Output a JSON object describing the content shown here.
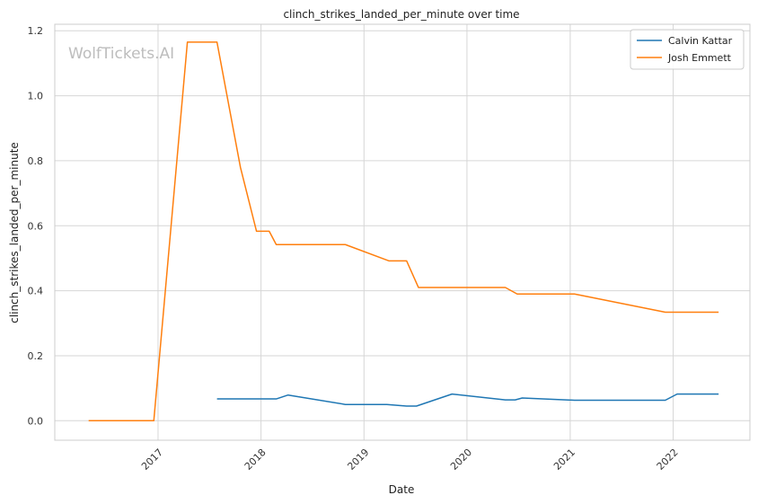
{
  "chart_data": {
    "type": "line",
    "title": "clinch_strikes_landed_per_minute over time",
    "xlabel": "Date",
    "ylabel": "clinch_strikes_landed_per_minute",
    "watermark": "WolfTickets.AI",
    "xlim": [
      "2016-01-01",
      "2022-09-30"
    ],
    "ylim": [
      -0.06,
      1.22
    ],
    "x_ticks": [
      "2017",
      "2018",
      "2019",
      "2020",
      "2021",
      "2022"
    ],
    "y_ticks": [
      "0.0",
      "0.2",
      "0.4",
      "0.6",
      "0.8",
      "1.0",
      "1.2"
    ],
    "grid": true,
    "legend_position": "top-right",
    "series": [
      {
        "name": "Calvin Kattar",
        "color": "#1f77b4",
        "points": [
          [
            "2017-07-29",
            0.067
          ],
          [
            "2018-01-14",
            0.067
          ],
          [
            "2018-02-24",
            0.067
          ],
          [
            "2018-04-07",
            0.079
          ],
          [
            "2018-10-27",
            0.05
          ],
          [
            "2019-03-23",
            0.05
          ],
          [
            "2019-06-01",
            0.045
          ],
          [
            "2019-07-06",
            0.045
          ],
          [
            "2019-11-09",
            0.082
          ],
          [
            "2020-05-16",
            0.064
          ],
          [
            "2020-06-20",
            0.064
          ],
          [
            "2020-07-15",
            0.07
          ],
          [
            "2021-01-16",
            0.063
          ],
          [
            "2021-10-23",
            0.063
          ],
          [
            "2021-12-04",
            0.063
          ],
          [
            "2022-01-15",
            0.082
          ],
          [
            "2022-06-11",
            0.082
          ]
        ]
      },
      {
        "name": "Josh Emmett",
        "color": "#ff7f0e",
        "points": [
          [
            "2016-04-30",
            0.0
          ],
          [
            "2016-12-17",
            0.0
          ],
          [
            "2017-04-15",
            1.165
          ],
          [
            "2017-07-29",
            1.165
          ],
          [
            "2017-10-20",
            0.78
          ],
          [
            "2017-12-16",
            0.583
          ],
          [
            "2018-01-30",
            0.583
          ],
          [
            "2018-02-24",
            0.542
          ],
          [
            "2018-10-27",
            0.542
          ],
          [
            "2019-03-30",
            0.492
          ],
          [
            "2019-06-01",
            0.492
          ],
          [
            "2019-07-13",
            0.41
          ],
          [
            "2020-05-16",
            0.41
          ],
          [
            "2020-06-27",
            0.39
          ],
          [
            "2021-01-16",
            0.39
          ],
          [
            "2021-12-04",
            0.334
          ],
          [
            "2022-06-11",
            0.334
          ]
        ]
      }
    ]
  }
}
